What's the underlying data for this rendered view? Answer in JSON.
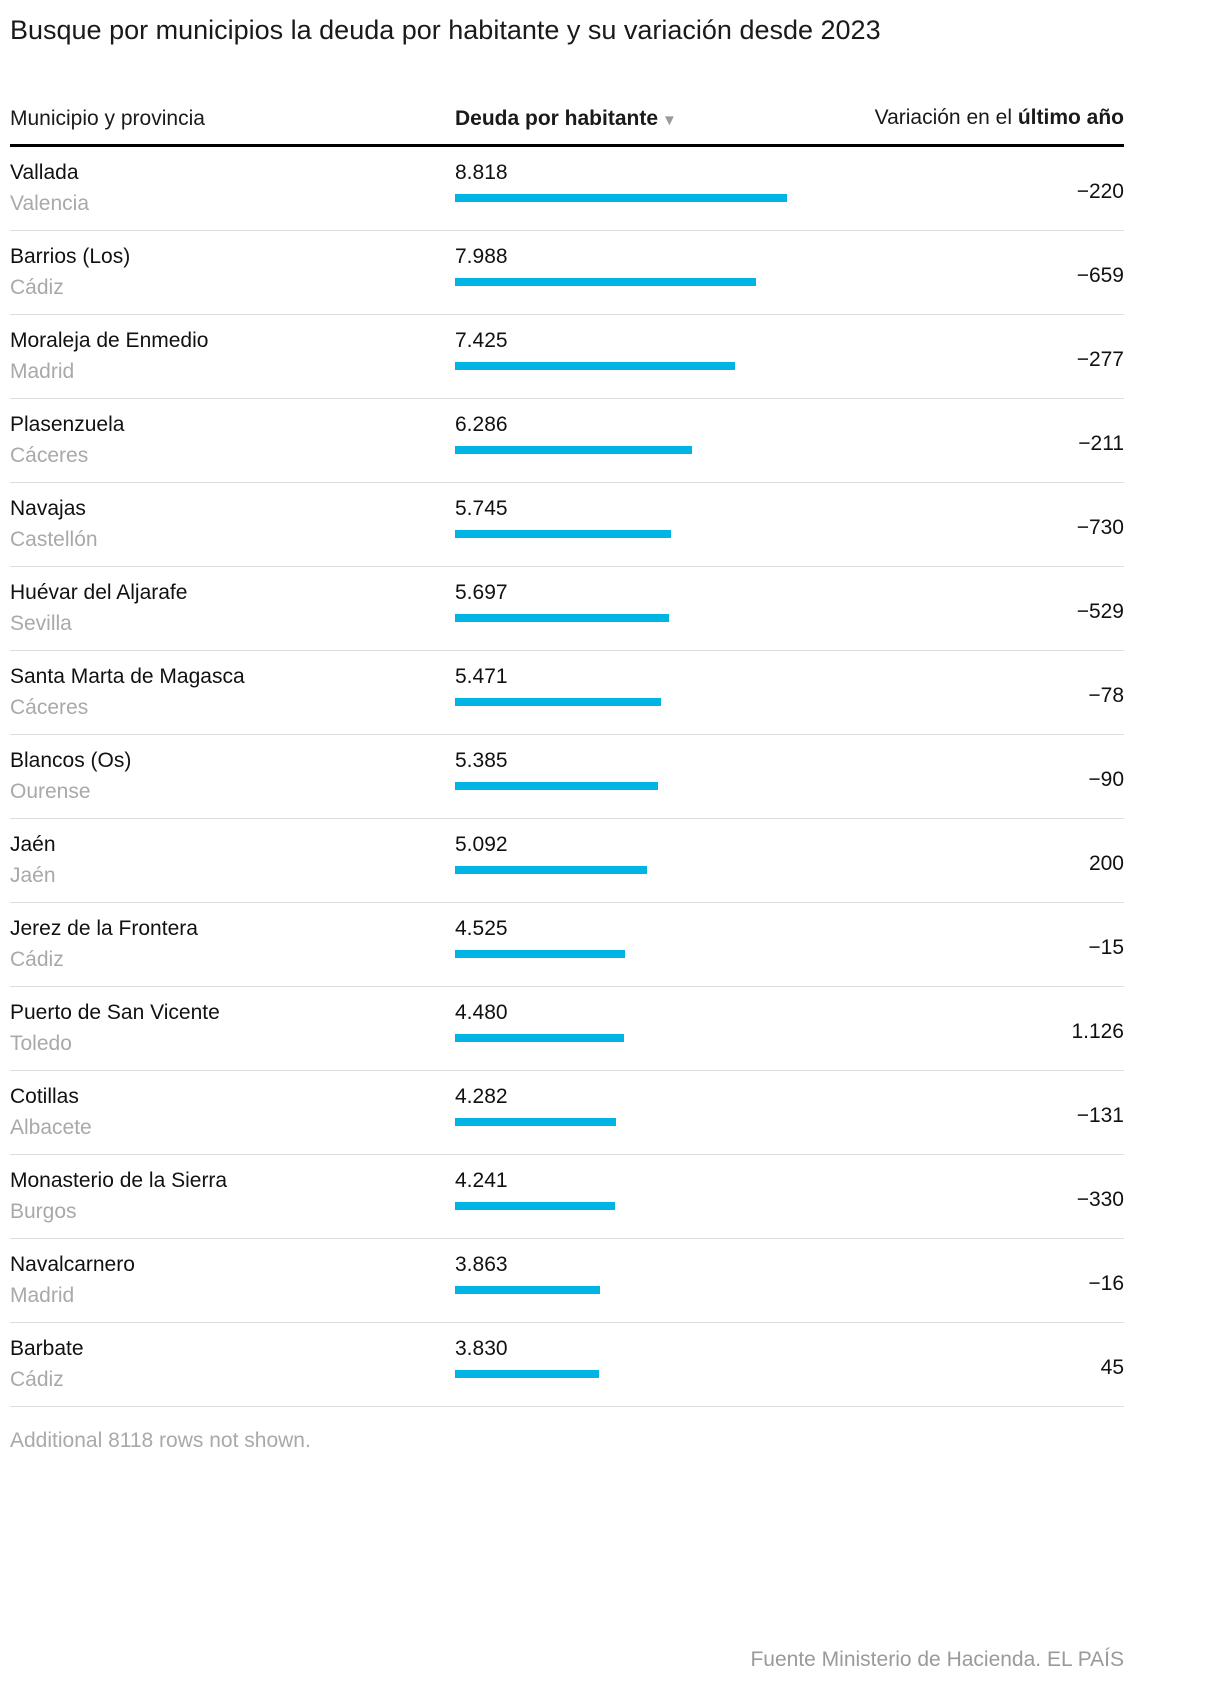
{
  "title": "Busque por municipios la deuda por habitante y su variación desde 2023",
  "colors": {
    "bar": "#00b4e6",
    "muted_text": "#a9a9a9",
    "header_rule": "#000000",
    "row_divider": "#dedede"
  },
  "table": {
    "columns": {
      "municipio": "Municipio y provincia",
      "deuda": "Deuda por habitante",
      "sort_icon": "▼",
      "variacion_prefix": "Variación en el ",
      "variacion_bold": "último año"
    },
    "rows": [
      {
        "municipio": "Vallada",
        "provincia": "Valencia",
        "deuda": "8.818",
        "deuda_value": 8818,
        "variacion": "−220"
      },
      {
        "municipio": "Barrios (Los)",
        "provincia": "Cádiz",
        "deuda": "7.988",
        "deuda_value": 7988,
        "variacion": "−659"
      },
      {
        "municipio": "Moraleja de Enmedio",
        "provincia": "Madrid",
        "deuda": "7.425",
        "deuda_value": 7425,
        "variacion": "−277"
      },
      {
        "municipio": "Plasenzuela",
        "provincia": "Cáceres",
        "deuda": "6.286",
        "deuda_value": 6286,
        "variacion": "−211"
      },
      {
        "municipio": "Navajas",
        "provincia": "Castellón",
        "deuda": "5.745",
        "deuda_value": 5745,
        "variacion": "−730"
      },
      {
        "municipio": "Huévar del Aljarafe",
        "provincia": "Sevilla",
        "deuda": "5.697",
        "deuda_value": 5697,
        "variacion": "−529"
      },
      {
        "municipio": "Santa Marta de Magasca",
        "provincia": "Cáceres",
        "deuda": "5.471",
        "deuda_value": 5471,
        "variacion": "−78"
      },
      {
        "municipio": "Blancos (Os)",
        "provincia": "Ourense",
        "deuda": "5.385",
        "deuda_value": 5385,
        "variacion": "−90"
      },
      {
        "municipio": "Jaén",
        "provincia": "Jaén",
        "deuda": "5.092",
        "deuda_value": 5092,
        "variacion": "200"
      },
      {
        "municipio": "Jerez de la Frontera",
        "provincia": "Cádiz",
        "deuda": "4.525",
        "deuda_value": 4525,
        "variacion": "−15"
      },
      {
        "municipio": "Puerto de San Vicente",
        "provincia": "Toledo",
        "deuda": "4.480",
        "deuda_value": 4480,
        "variacion": "1.126"
      },
      {
        "municipio": "Cotillas",
        "provincia": "Albacete",
        "deuda": "4.282",
        "deuda_value": 4282,
        "variacion": "−131"
      },
      {
        "municipio": "Monasterio de la Sierra",
        "provincia": "Burgos",
        "deuda": "4.241",
        "deuda_value": 4241,
        "variacion": "−330"
      },
      {
        "municipio": "Navalcarnero",
        "provincia": "Madrid",
        "deuda": "3.863",
        "deuda_value": 3863,
        "variacion": "−16"
      },
      {
        "municipio": "Barbate",
        "provincia": "Cádiz",
        "deuda": "3.830",
        "deuda_value": 3830,
        "variacion": "45"
      }
    ]
  },
  "footer": {
    "additional_note": "Additional 8118 rows not shown.",
    "source": "Fuente Ministerio de Hacienda. EL PAÍS"
  },
  "chart_data": {
    "type": "bar",
    "orientation": "horizontal",
    "title": "Busque por municipios la deuda por habitante y su variación desde 2023",
    "categories": [
      "Vallada (Valencia)",
      "Barrios (Los) (Cádiz)",
      "Moraleja de Enmedio (Madrid)",
      "Plasenzuela (Cáceres)",
      "Navajas (Castellón)",
      "Huévar del Aljarafe (Sevilla)",
      "Santa Marta de Magasca (Cáceres)",
      "Blancos (Os) (Ourense)",
      "Jaén (Jaén)",
      "Jerez de la Frontera (Cádiz)",
      "Puerto de San Vicente (Toledo)",
      "Cotillas (Albacete)",
      "Monasterio de la Sierra (Burgos)",
      "Navalcarnero (Madrid)",
      "Barbate (Cádiz)"
    ],
    "series": [
      {
        "name": "Deuda por habitante",
        "values": [
          8818,
          7988,
          7425,
          6286,
          5745,
          5697,
          5471,
          5385,
          5092,
          4525,
          4480,
          4282,
          4241,
          3863,
          3830
        ]
      },
      {
        "name": "Variación en el último año",
        "values": [
          -220,
          -659,
          -277,
          -211,
          -730,
          -529,
          -78,
          -90,
          200,
          -15,
          1126,
          -131,
          -330,
          -16,
          45
        ]
      }
    ],
    "xlim": [
      0,
      8818
    ],
    "grid": false,
    "legend": "none",
    "sort": "Deuda por habitante descending"
  }
}
